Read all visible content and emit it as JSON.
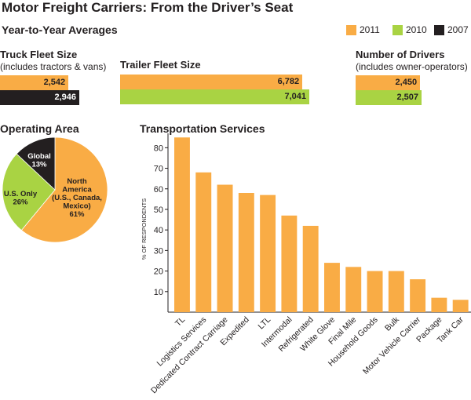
{
  "header": {
    "title": "Motor Freight Carriers: From the Driver’s Seat",
    "subtitle": "Year-to-Year Averages"
  },
  "legend": [
    {
      "label": "2011",
      "color": "#f9ac45"
    },
    {
      "label": "2010",
      "color": "#a9d343"
    },
    {
      "label": "2007",
      "color": "#231f20"
    }
  ],
  "fleet": {
    "truck": {
      "title": "Truck Fleet Size",
      "subtitle": "(includes tractors & vans)",
      "bars": [
        {
          "year": "2011",
          "value": 2542,
          "label": "2,542",
          "color": "#f9ac45"
        },
        {
          "year": "2007",
          "value": 2946,
          "label": "2,946",
          "color": "#231f20"
        }
      ]
    },
    "trailer": {
      "title": "Trailer Fleet Size",
      "bars": [
        {
          "year": "2011",
          "value": 6782,
          "label": "6,782",
          "color": "#f9ac45"
        },
        {
          "year": "2010",
          "value": 7041,
          "label": "7,041",
          "color": "#a9d343"
        }
      ]
    },
    "drivers": {
      "title": "Number of Drivers",
      "subtitle": "(includes owner-operators)",
      "bars": [
        {
          "year": "2011",
          "value": 2450,
          "label": "2,450",
          "color": "#f9ac45"
        },
        {
          "year": "2010",
          "value": 2507,
          "label": "2,507",
          "color": "#a9d343"
        }
      ]
    }
  },
  "operating_area": {
    "title": "Operating Area",
    "slices": [
      {
        "name": "North America (U.S., Canada, Mexico)",
        "label_lines": [
          "North",
          "America",
          "(U.S., Canada,",
          "Mexico)",
          "61%"
        ],
        "value": 61,
        "color": "#f9ac45",
        "text_color": "#231f20"
      },
      {
        "name": "U.S. Only",
        "label_lines": [
          "U.S. Only",
          "26%"
        ],
        "value": 26,
        "color": "#a9d343",
        "text_color": "#231f20"
      },
      {
        "name": "Global",
        "label_lines": [
          "Global",
          "13%"
        ],
        "value": 13,
        "color": "#231f20",
        "text_color": "#ffffff"
      }
    ]
  },
  "chart_data": {
    "type": "bar",
    "title": "Transportation Services",
    "xlabel": "",
    "ylabel": "% OF RESPONDENTS",
    "ylim": [
      0,
      87
    ],
    "yticks": [
      10,
      20,
      30,
      40,
      50,
      60,
      70,
      80
    ],
    "grid": false,
    "color": "#f9ac45",
    "categories": [
      "TL",
      "Logistics Services",
      "Dedicated Contract Carriage",
      "Expedited",
      "LTL",
      "Intermodal",
      "Refrigerated",
      "White Glove",
      "Final Mile",
      "Household Goods",
      "Bulk",
      "Motor Vehicle Carrier",
      "Package",
      "Tank Car"
    ],
    "values": [
      85,
      68,
      62,
      58,
      57,
      47,
      42,
      24,
      22,
      20,
      20,
      16,
      7,
      6
    ]
  }
}
